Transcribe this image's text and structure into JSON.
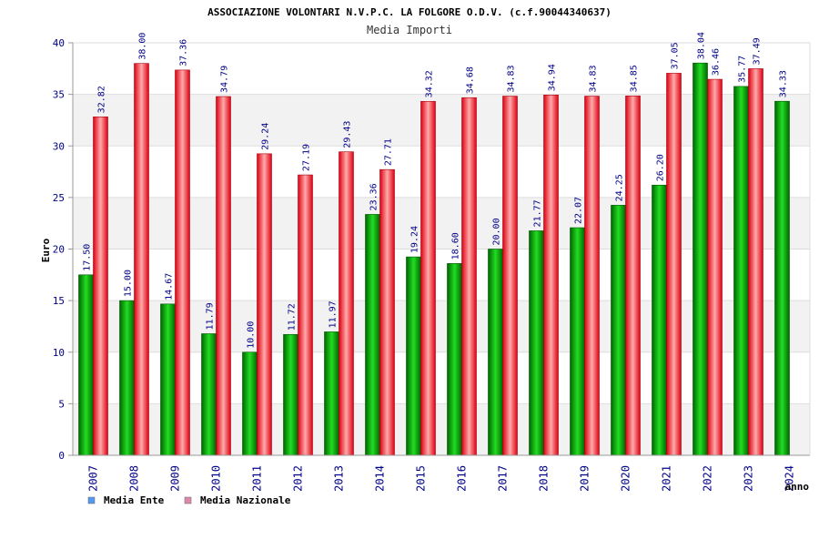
{
  "chart_data": {
    "type": "bar",
    "title": "ASSOCIAZIONE VOLONTARI N.V.P.C. LA FOLGORE O.D.V. (c.f.90044340637)",
    "subtitle": "Media Importi",
    "ylabel": "Euro",
    "xlabel": "anno",
    "ylim": [
      0,
      40
    ],
    "yticks": [
      0,
      5,
      10,
      15,
      20,
      25,
      30,
      35,
      40
    ],
    "grid": true,
    "legend_position": "bottom-left",
    "categories": [
      "2007",
      "2008",
      "2009",
      "2010",
      "2011",
      "2012",
      "2013",
      "2014",
      "2015",
      "2016",
      "2017",
      "2018",
      "2019",
      "2020",
      "2021",
      "2022",
      "2023",
      "2024"
    ],
    "series": [
      {
        "name": "Media Ente",
        "color": "#00aa00",
        "legend_color": "#5599ee",
        "values": [
          17.5,
          15.0,
          14.67,
          11.79,
          10.0,
          11.72,
          11.97,
          23.36,
          19.24,
          18.6,
          20.0,
          21.77,
          22.07,
          24.25,
          26.2,
          38.04,
          35.77,
          34.33
        ],
        "labels": [
          "17.50",
          "15.00",
          "14.67",
          "11.79",
          "10.00",
          "11.72",
          "11.97",
          "23.36",
          "19.24",
          "18.60",
          "20.00",
          "21.77",
          "22.07",
          "24.25",
          "26.20",
          "38.04",
          "35.77",
          "34.33"
        ]
      },
      {
        "name": "Media Nazionale",
        "color": "#ee2233",
        "legend_color": "#dd88aa",
        "values": [
          32.82,
          38.0,
          37.36,
          34.79,
          29.24,
          27.19,
          29.43,
          27.71,
          34.32,
          34.68,
          34.83,
          34.94,
          34.83,
          34.85,
          37.05,
          36.46,
          37.49,
          null
        ],
        "labels": [
          "32.82",
          "38.00",
          "37.36",
          "34.79",
          "29.24",
          "27.19",
          "29.43",
          "27.71",
          "34.32",
          "34.68",
          "34.83",
          "34.94",
          "34.83",
          "34.85",
          "37.05",
          "36.46",
          "37.49",
          ""
        ]
      }
    ]
  }
}
